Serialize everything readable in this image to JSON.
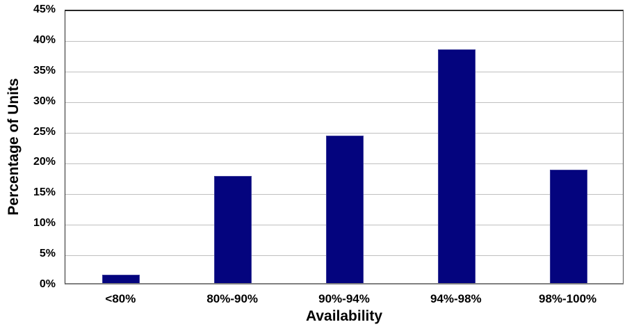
{
  "chart_data": {
    "type": "bar",
    "title": "",
    "categories": [
      "<80%",
      "80%-90%",
      "90%-94%",
      "94%-98%",
      "98%-100%"
    ],
    "values": [
      1.4,
      17.5,
      24.2,
      38.3,
      18.6
    ],
    "xlabel": "Availability",
    "ylabel": "Percentage of Units",
    "ylim": [
      0,
      45
    ],
    "ytick_step": 5,
    "ytick_labels": [
      "0%",
      "5%",
      "10%",
      "15%",
      "20%",
      "25%",
      "30%",
      "35%",
      "40%",
      "45%"
    ],
    "grid": "horizontal",
    "legend_position": "none",
    "colors": {
      "bar_fill": "#04047E",
      "bar_border": "#3B3B99",
      "gridline": "#BFBFBF",
      "plot_border": "#595959",
      "axis_bottom": "#808080",
      "text": "#000000",
      "background": "#FFFFFF"
    }
  }
}
